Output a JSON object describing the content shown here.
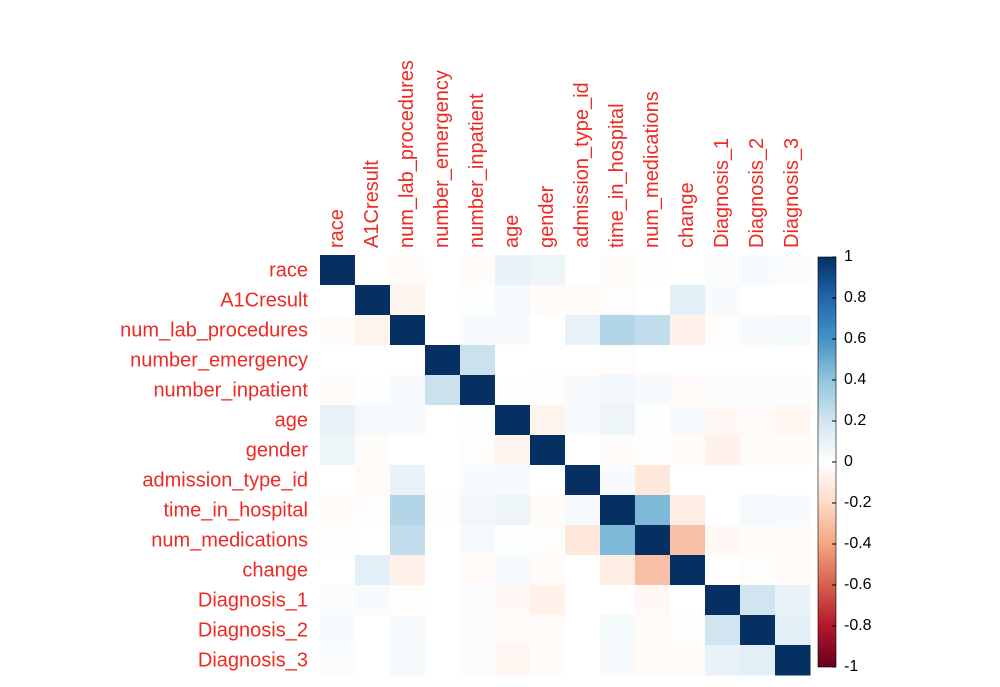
{
  "chart_data": {
    "type": "heatmap",
    "rows": [
      "race",
      "A1Cresult",
      "num_lab_procedures",
      "number_emergency",
      "number_inpatient",
      "age",
      "gender",
      "admission_type_id",
      "time_in_hospital",
      "num_medications",
      "change",
      "Diagnosis_1",
      "Diagnosis_2",
      "Diagnosis_3"
    ],
    "columns": [
      "race",
      "A1Cresult",
      "num_lab_procedures",
      "number_emergency",
      "number_inpatient",
      "age",
      "gender",
      "admission_type_id",
      "time_in_hospital",
      "num_medications",
      "change",
      "Diagnosis_1",
      "Diagnosis_2",
      "Diagnosis_3"
    ],
    "values": [
      [
        1,
        0,
        -0.02,
        0,
        -0.02,
        0.1,
        0.08,
        0,
        -0.02,
        0.01,
        0,
        0.02,
        0.03,
        0.02
      ],
      [
        0,
        1,
        -0.06,
        0,
        0.01,
        0.05,
        -0.02,
        -0.03,
        -0.01,
        0,
        0.12,
        0.03,
        0,
        0
      ],
      [
        -0.02,
        -0.06,
        1,
        0,
        0.03,
        0.03,
        0,
        0.1,
        0.3,
        0.25,
        -0.07,
        -0.01,
        0.04,
        0.05
      ],
      [
        0,
        0,
        0,
        1,
        0.22,
        0,
        0,
        0,
        -0.01,
        0,
        0,
        0,
        0,
        0
      ],
      [
        -0.02,
        0.01,
        0.03,
        0.22,
        1,
        0.01,
        -0.01,
        0.03,
        0.06,
        0.04,
        -0.03,
        0.02,
        0.02,
        0.02
      ],
      [
        0.1,
        0.05,
        0.03,
        0,
        0.01,
        1,
        -0.06,
        0.03,
        0.08,
        0.01,
        0.04,
        -0.04,
        -0.03,
        -0.05
      ],
      [
        0.08,
        -0.02,
        0,
        0,
        -0.01,
        -0.06,
        1,
        0,
        -0.02,
        -0.01,
        -0.02,
        -0.07,
        -0.02,
        -0.02
      ],
      [
        0,
        -0.03,
        0.1,
        0,
        0.03,
        0.03,
        0,
        1,
        0.03,
        -0.13,
        0,
        0,
        0,
        0
      ],
      [
        -0.02,
        -0.01,
        0.3,
        -0.01,
        0.06,
        0.08,
        -0.02,
        0.03,
        1,
        0.45,
        -0.1,
        0,
        0.05,
        0.03
      ],
      [
        0.01,
        0,
        0.25,
        0,
        0.04,
        0.01,
        -0.01,
        -0.13,
        0.45,
        1,
        -0.3,
        -0.04,
        -0.02,
        -0.02
      ],
      [
        0,
        0.12,
        -0.07,
        0,
        -0.03,
        0.04,
        -0.02,
        0,
        -0.1,
        -0.3,
        1,
        0,
        -0.01,
        -0.02
      ],
      [
        0.02,
        0.03,
        -0.01,
        0,
        0.02,
        -0.04,
        -0.07,
        0,
        0,
        -0.04,
        0,
        1,
        0.2,
        0.1
      ],
      [
        0.03,
        0,
        0.04,
        0,
        0.02,
        -0.03,
        -0.02,
        0,
        0.05,
        -0.02,
        -0.01,
        0.2,
        1,
        0.12
      ],
      [
        0.02,
        0,
        0.05,
        0,
        0.02,
        -0.05,
        -0.02,
        0,
        0.03,
        -0.02,
        -0.02,
        0.1,
        0.12,
        1
      ]
    ],
    "zlim": [
      -1,
      1
    ],
    "zticks": [
      1,
      0.8,
      0.6,
      0.4,
      0.2,
      0,
      -0.2,
      -0.4,
      -0.6,
      -0.8,
      -1
    ],
    "colors": [
      "#67001F",
      "#B2182B",
      "#D6604D",
      "#F4A582",
      "#FDDBC7",
      "#FFFFFF",
      "#D1E5F0",
      "#92C5DE",
      "#4393C3",
      "#2166AC",
      "#053061"
    ]
  }
}
